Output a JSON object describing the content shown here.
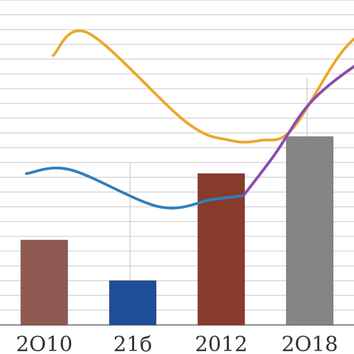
{
  "chart_data": {
    "type": "bar",
    "categories": [
      "2010",
      "2016",
      "2012",
      "2018"
    ],
    "category_labels_as_printed": [
      "2O10",
      "21б",
      "2012",
      "2O18"
    ],
    "bars": {
      "values": [
        23,
        12,
        41,
        51
      ],
      "colors": [
        "#8e5a52",
        "#1f4e9a",
        "#8a3a2c",
        "#858585"
      ]
    },
    "line_series": [
      {
        "color": "#e8a92c",
        "x": [
          0.1,
          0.5,
          1.6,
          2.1,
          2.45,
          2.8,
          3.4,
          3.95
        ],
        "y": [
          73,
          79,
          55,
          50,
          50,
          53,
          75,
          85
        ]
      },
      {
        "color": "#2f7fbe",
        "x": [
          -0.2,
          0.3,
          1.3,
          1.9,
          2.25
        ],
        "y": [
          41,
          42,
          32,
          34,
          35
        ]
      },
      {
        "color": "#8b4bb0",
        "x": [
          2.25,
          2.6,
          3.0,
          3.5,
          3.95
        ],
        "y": [
          35,
          46,
          60,
          70,
          76
        ]
      }
    ],
    "ylim": [
      0,
      88
    ],
    "grid": true,
    "title": "",
    "xlabel": "",
    "ylabel": ""
  }
}
